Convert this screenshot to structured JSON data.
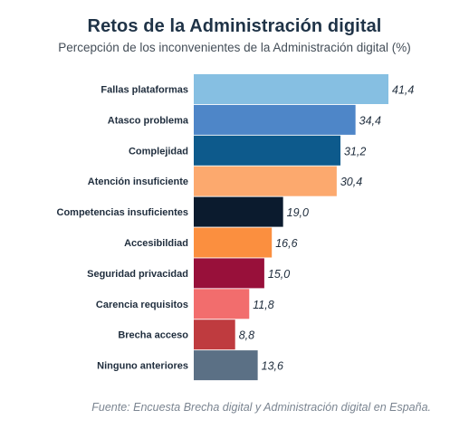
{
  "chart_data": {
    "type": "bar",
    "orientation": "horizontal",
    "title": "Retos de la Administración digital",
    "subtitle": "Percepción de los inconvenientes de la Administración digital (%)",
    "categories": [
      "Fallas plataformas",
      "Atasco problema",
      "Complejidad",
      "Atención insuficiente",
      "Competencias insuficientes",
      "Accesibildiad",
      "Seguridad privacidad",
      "Carencia requisitos",
      "Brecha acceso",
      "Ninguno anteriores"
    ],
    "values": [
      41.4,
      34.4,
      31.2,
      30.4,
      19.0,
      16.6,
      15.0,
      11.8,
      8.8,
      13.6
    ],
    "value_labels": [
      "41,4",
      "34,4",
      "31,2",
      "30,4",
      "19,0",
      "16,6",
      "15,0",
      "11,8",
      "8,8",
      "13,6"
    ],
    "colors": [
      "#86bfe2",
      "#4e86c8",
      "#0d5a8c",
      "#fca96e",
      "#0b1b2e",
      "#fb8f3f",
      "#98103a",
      "#f26d6d",
      "#bf3b3f",
      "#5b7085"
    ],
    "xlim": [
      0,
      41.4
    ],
    "grid": false,
    "legend": "none"
  },
  "source": "Fuente: Encuesta Brecha digital y Administración digital en España."
}
